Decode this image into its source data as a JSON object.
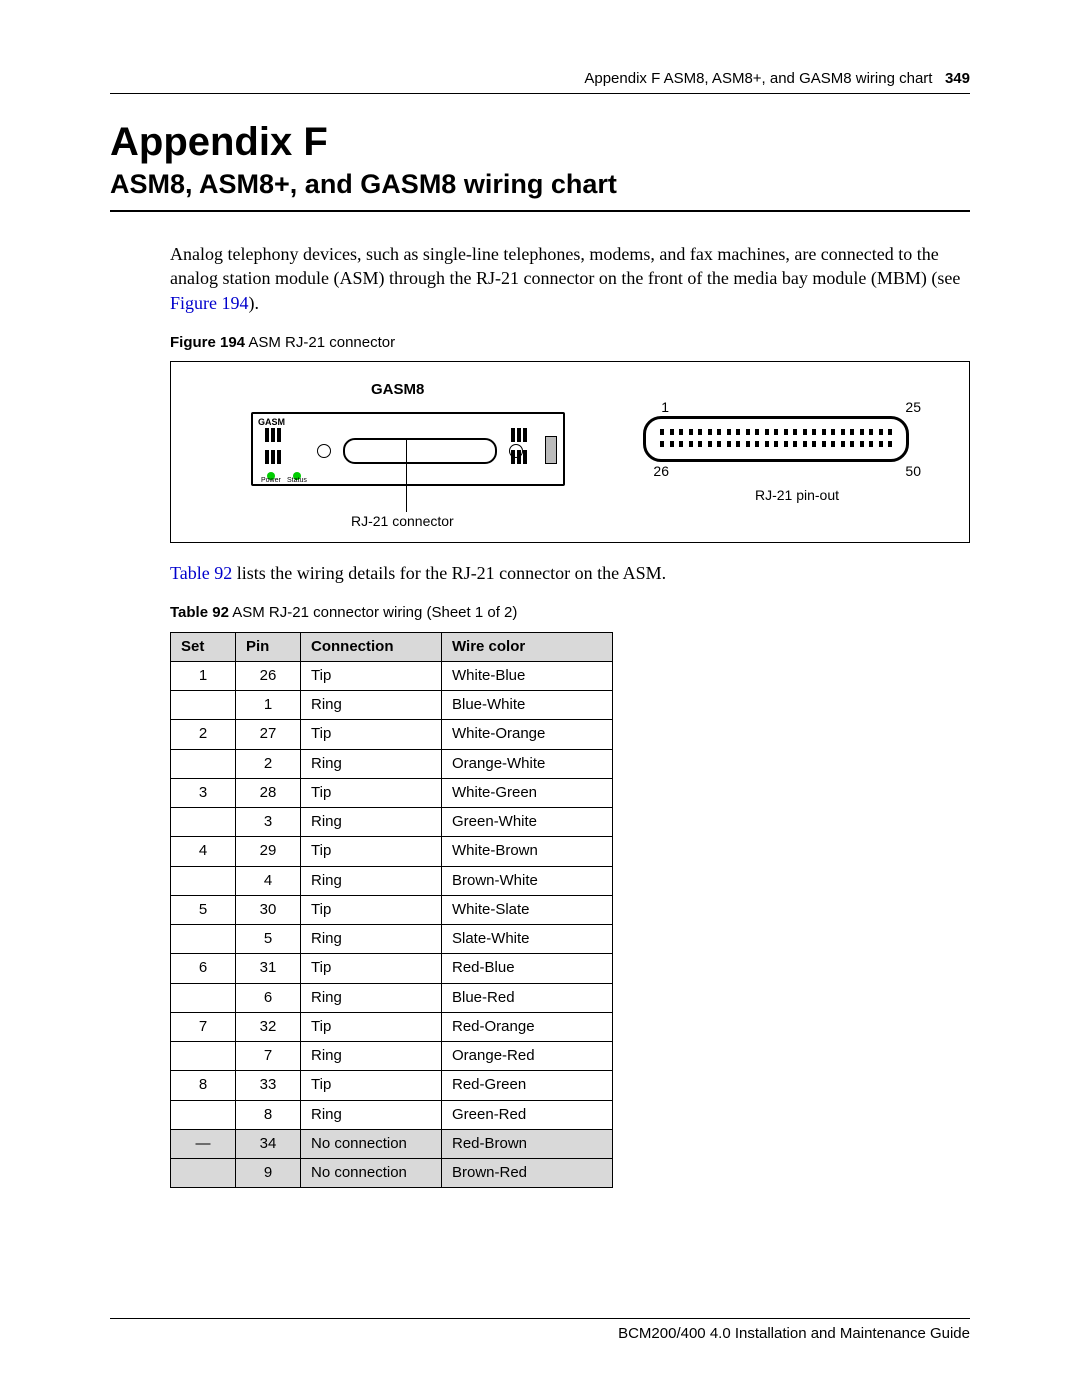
{
  "header": {
    "running": "Appendix F  ASM8, ASM8+, and GASM8 wiring chart",
    "page_number": "349"
  },
  "title": {
    "line1": "Appendix F",
    "line2": "ASM8, ASM8+, and GASM8 wiring chart"
  },
  "paragraph1a": "Analog telephony devices, such as single-line telephones, modems, and fax machines, are connected to the analog station module (ASM) through the RJ-21 connector on the front of the media bay module (MBM) (see ",
  "paragraph1_link": "Figure 194",
  "paragraph1b": ").",
  "figure": {
    "caption_bold": "Figure 194",
    "caption_rest": "   ASM RJ-21 connector",
    "module_title": "GASM8",
    "module_corner": "GASM",
    "rj21_label": "RJ-21 connector",
    "led1_label": "Power",
    "led2_label": "Status",
    "pinout_label": "RJ-21 pin-out",
    "pins": {
      "tl": "1",
      "tr": "25",
      "bl": "26",
      "br": "50"
    },
    "pin_count_per_row": 25
  },
  "paragraph2_link": "Table 92",
  "paragraph2_rest": " lists the wiring details for the RJ-21 connector on the ASM.",
  "table": {
    "caption_bold": "Table 92",
    "caption_rest": "   ASM RJ-21 connector wiring (Sheet 1 of 2)",
    "columns": [
      "Set",
      "Pin",
      "Connection",
      "Wire color"
    ],
    "rows": [
      {
        "set": "1",
        "pin": "26",
        "conn": "Tip",
        "wire": "White-Blue",
        "grey": false
      },
      {
        "set": "",
        "pin": "1",
        "conn": "Ring",
        "wire": "Blue-White",
        "grey": false
      },
      {
        "set": "2",
        "pin": "27",
        "conn": "Tip",
        "wire": "White-Orange",
        "grey": false
      },
      {
        "set": "",
        "pin": "2",
        "conn": "Ring",
        "wire": "Orange-White",
        "grey": false
      },
      {
        "set": "3",
        "pin": "28",
        "conn": "Tip",
        "wire": "White-Green",
        "grey": false
      },
      {
        "set": "",
        "pin": "3",
        "conn": "Ring",
        "wire": "Green-White",
        "grey": false
      },
      {
        "set": "4",
        "pin": "29",
        "conn": "Tip",
        "wire": "White-Brown",
        "grey": false
      },
      {
        "set": "",
        "pin": "4",
        "conn": "Ring",
        "wire": "Brown-White",
        "grey": false
      },
      {
        "set": "5",
        "pin": "30",
        "conn": "Tip",
        "wire": "White-Slate",
        "grey": false
      },
      {
        "set": "",
        "pin": "5",
        "conn": "Ring",
        "wire": "Slate-White",
        "grey": false
      },
      {
        "set": "6",
        "pin": "31",
        "conn": "Tip",
        "wire": "Red-Blue",
        "grey": false
      },
      {
        "set": "",
        "pin": "6",
        "conn": "Ring",
        "wire": "Blue-Red",
        "grey": false
      },
      {
        "set": "7",
        "pin": "32",
        "conn": "Tip",
        "wire": "Red-Orange",
        "grey": false
      },
      {
        "set": "",
        "pin": "7",
        "conn": "Ring",
        "wire": "Orange-Red",
        "grey": false
      },
      {
        "set": "8",
        "pin": "33",
        "conn": "Tip",
        "wire": "Red-Green",
        "grey": false
      },
      {
        "set": "",
        "pin": "8",
        "conn": "Ring",
        "wire": "Green-Red",
        "grey": false
      },
      {
        "set": "—",
        "pin": "34",
        "conn": "No connection",
        "wire": "Red-Brown",
        "grey": true
      },
      {
        "set": "",
        "pin": "9",
        "conn": "No connection",
        "wire": "Brown-Red",
        "grey": true
      }
    ]
  },
  "footer": "BCM200/400 4.0 Installation and Maintenance Guide",
  "colors": {
    "link": "#0000cc",
    "header_grey": "#d9d9d9",
    "led_green": "#00cc00"
  }
}
